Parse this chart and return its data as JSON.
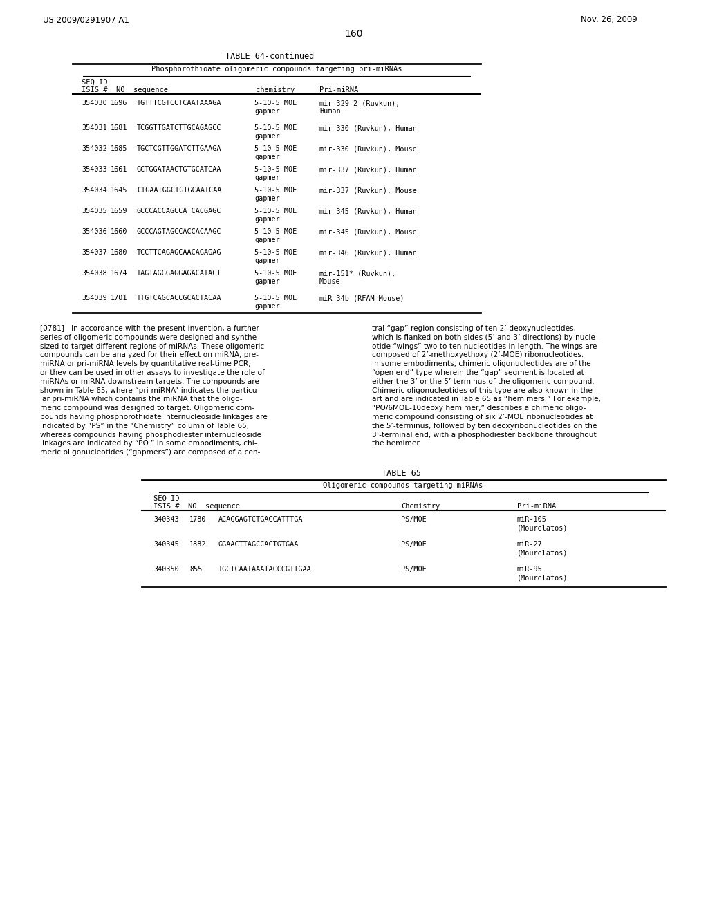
{
  "header_left": "US 2009/0291907 A1",
  "header_right": "Nov. 26, 2009",
  "page_number": "160",
  "table64_title": "TABLE 64-continued",
  "table64_subtitle": "Phosphorothioate oligomeric compounds targeting pri-miRNAs",
  "table64_rows": [
    [
      "354030",
      "1696",
      "TGTTTCGTCCTCAATAAAGA",
      "5-10-5 MOE",
      "gapmer",
      "mir-329-2 (Ruvkun),",
      "Human"
    ],
    [
      "354031",
      "1681",
      "TCGGTTGATCTTGCAGAGCC",
      "5-10-5 MOE",
      "gapmer",
      "mir-330 (Ruvkun), Human",
      ""
    ],
    [
      "354032",
      "1685",
      "TGCTCGTTGGATCTTGAAGA",
      "5-10-5 MOE",
      "gapmer",
      "mir-330 (Ruvkun), Mouse",
      ""
    ],
    [
      "354033",
      "1661",
      "GCTGGATAACTGTGCATCAA",
      "5-10-5 MOE",
      "gapmer",
      "mir-337 (Ruvkun), Human",
      ""
    ],
    [
      "354034",
      "1645",
      "CTGAATGGCTGTGCAATCAA",
      "5-10-5 MOE",
      "gapmer",
      "mir-337 (Ruvkun), Mouse",
      ""
    ],
    [
      "354035",
      "1659",
      "GCCCACCAGCCATCACGAGC",
      "5-10-5 MOE",
      "gapmer",
      "mir-345 (Ruvkun), Human",
      ""
    ],
    [
      "354036",
      "1660",
      "GCCCAGTAGCCACCACAAGC",
      "5-10-5 MOE",
      "gapmer",
      "mir-345 (Ruvkun), Mouse",
      ""
    ],
    [
      "354037",
      "1680",
      "TCCTTCAGAGCAACAGAGAG",
      "5-10-5 MOE",
      "gapmer",
      "mir-346 (Ruvkun), Human",
      ""
    ],
    [
      "354038",
      "1674",
      "TAGTAGGGAGGAGACATACT",
      "5-10-5 MOE",
      "gapmer",
      "mir-151* (Ruvkun),",
      "Mouse"
    ],
    [
      "354039",
      "1701",
      "TTGTCAGCACCGCACTACAA",
      "5-10-5 MOE",
      "gapmer",
      "miR-34b (RFAM-Mouse)",
      ""
    ]
  ],
  "left_para_lines": [
    "[0781]   In accordance with the present invention, a further",
    "series of oligomeric compounds were designed and synthe-",
    "sized to target different regions of miRNAs. These oligomeric",
    "compounds can be analyzed for their effect on miRNA, pre-",
    "miRNA or pri-miRNA levels by quantitative real-time PCR,",
    "or they can be used in other assays to investigate the role of",
    "miRNAs or miRNA downstream targets. The compounds are",
    "shown in Table 65, where “pri-miRNA” indicates the particu-",
    "lar pri-miRNA which contains the miRNA that the oligo-",
    "meric compound was designed to target. Oligomeric com-",
    "pounds having phosphorothioate internucleoside linkages are",
    "indicated by “PS” in the “Chemistry” column of Table 65,",
    "whereas compounds having phosphodiester internucleoside",
    "linkages are indicated by “PO.” In some embodiments, chi-",
    "meric oligonucleotides (“gapmers”) are composed of a cen-"
  ],
  "right_para_lines": [
    "tral “gap” region consisting of ten 2’-deoxynucleotides,",
    "which is flanked on both sides (5’ and 3’ directions) by nucle-",
    "otide “wings” two to ten nucleotides in length. The wings are",
    "composed of 2’-methoxyethoxy (2’-MOE) ribonucleotides.",
    "In some embodiments, chimeric oligonucleotides are of the",
    "“open end” type wherein the “gap” segment is located at",
    "either the 3’ or the 5’ terminus of the oligomeric compound.",
    "Chimeric oligonucleotides of this type are also known in the",
    "art and are indicated in Table 65 as “hemimers.” For example,",
    "“PO/6MOE-10deoxy hemimer,” describes a chimeric oligo-",
    "meric compound consisting of six 2’-MOE ribonucleotides at",
    "the 5’-terminus, followed by ten deoxyribonucleotides on the",
    "3’-terminal end, with a phosphodiester backbone throughout",
    "the hemimer."
  ],
  "table65_title": "TABLE 65",
  "table65_subtitle": "Oligomeric compounds targeting miRNAs",
  "table65_rows": [
    [
      "340343",
      "1780",
      "ACAGGAGTCTGAGCATTTGA",
      "PS/MOE",
      "miR-105",
      "(Mourelatos)"
    ],
    [
      "340345",
      "1882",
      "GGAACTTAGCCACTGTGAA",
      "PS/MOE",
      "miR-27",
      "(Mourelatos)"
    ],
    [
      "340350",
      "855",
      "TGCTCAATAAATACCCGTTGAA",
      "PS/MOE",
      "miR-95",
      "(Mourelatos)"
    ]
  ],
  "bg_color": "#ffffff"
}
